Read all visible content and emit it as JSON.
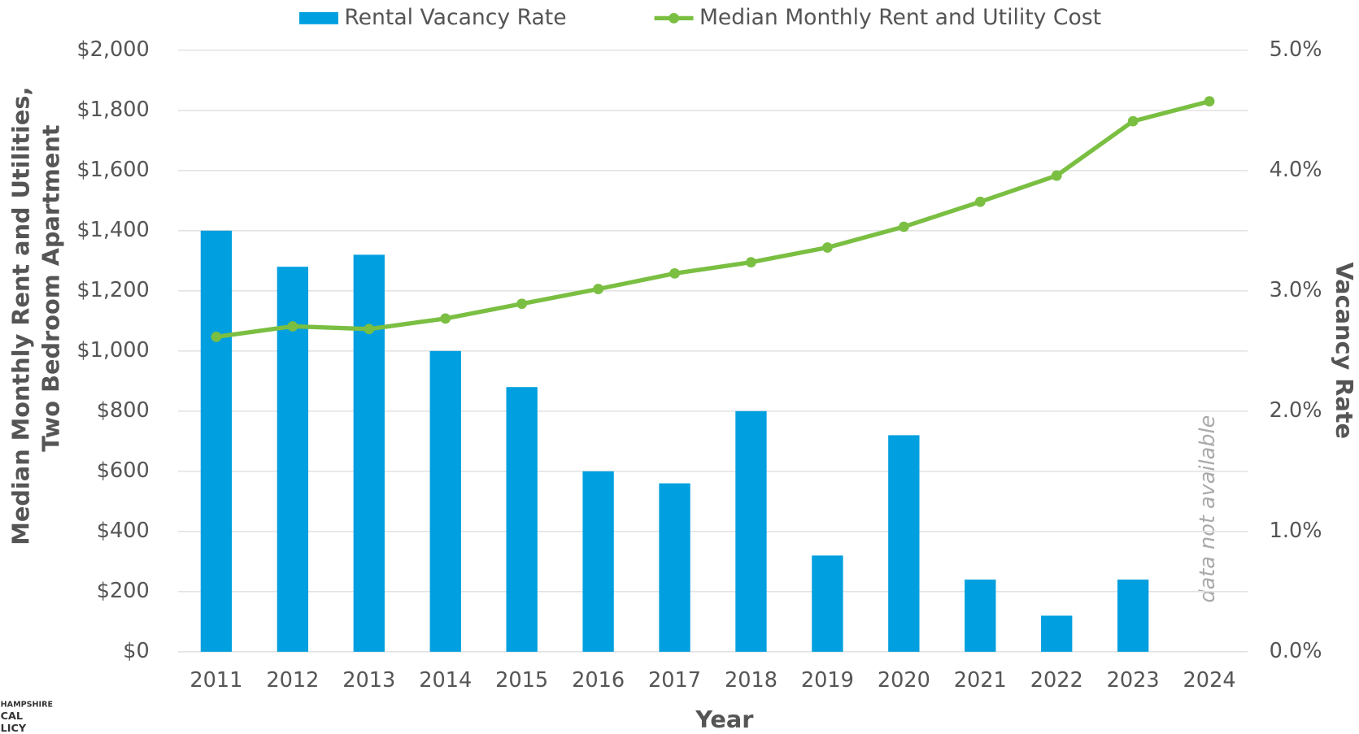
{
  "chart_data": {
    "type": "bar_line",
    "categories": [
      "2011",
      "2012",
      "2013",
      "2014",
      "2015",
      "2016",
      "2017",
      "2018",
      "2019",
      "2020",
      "2021",
      "2022",
      "2023",
      "2024"
    ],
    "series": [
      {
        "name": "Rental Vacancy Rate",
        "type": "bar",
        "color": "#009fdf",
        "axis": "y2",
        "values": [
          3.5,
          3.2,
          3.3,
          2.5,
          2.2,
          1.5,
          1.4,
          2.0,
          0.8,
          1.8,
          0.6,
          0.3,
          0.6,
          null
        ]
      },
      {
        "name": "Median Monthly Rent and Utility Cost",
        "type": "line",
        "color": "#7abf42",
        "values": [
          1047,
          1082,
          1073,
          1108,
          1157,
          1206,
          1258,
          1295,
          1344,
          1413,
          1496,
          1583,
          1764,
          1830
        ]
      }
    ],
    "ylabel": [
      "Median Monthly Rent and Utilities,",
      "Two Bedroom Apartment"
    ],
    "y2label": "Vacancy Rate",
    "xlabel": "Year",
    "annotation": "data not available",
    "logo": [
      "HAMPSHIRE",
      "CAL",
      "LICY"
    ],
    "ylim": [
      0,
      2000
    ],
    "yticks": [
      {
        "value": 0,
        "label": "$0"
      },
      {
        "value": 200,
        "label": "$200"
      },
      {
        "value": 400,
        "label": "$400"
      },
      {
        "value": 600,
        "label": "$600"
      },
      {
        "value": 800,
        "label": "$800"
      },
      {
        "value": 1000,
        "label": "$1,000"
      },
      {
        "value": 1200,
        "label": "$1,200"
      },
      {
        "value": 1400,
        "label": "$1,400"
      },
      {
        "value": 1600,
        "label": "$1,600"
      },
      {
        "value": 1800,
        "label": "$1,800"
      },
      {
        "value": 2000,
        "label": "$2,000"
      }
    ],
    "y2lim": [
      0,
      5
    ],
    "y2ticks": [
      {
        "value": 0,
        "label": "0.0%"
      },
      {
        "value": 1,
        "label": "1.0%"
      },
      {
        "value": 2,
        "label": "2.0%"
      },
      {
        "value": 3,
        "label": "3.0%"
      },
      {
        "value": 4,
        "label": "4.0%"
      },
      {
        "value": 5,
        "label": "5.0%"
      }
    ],
    "grid": true,
    "legend": "top"
  }
}
